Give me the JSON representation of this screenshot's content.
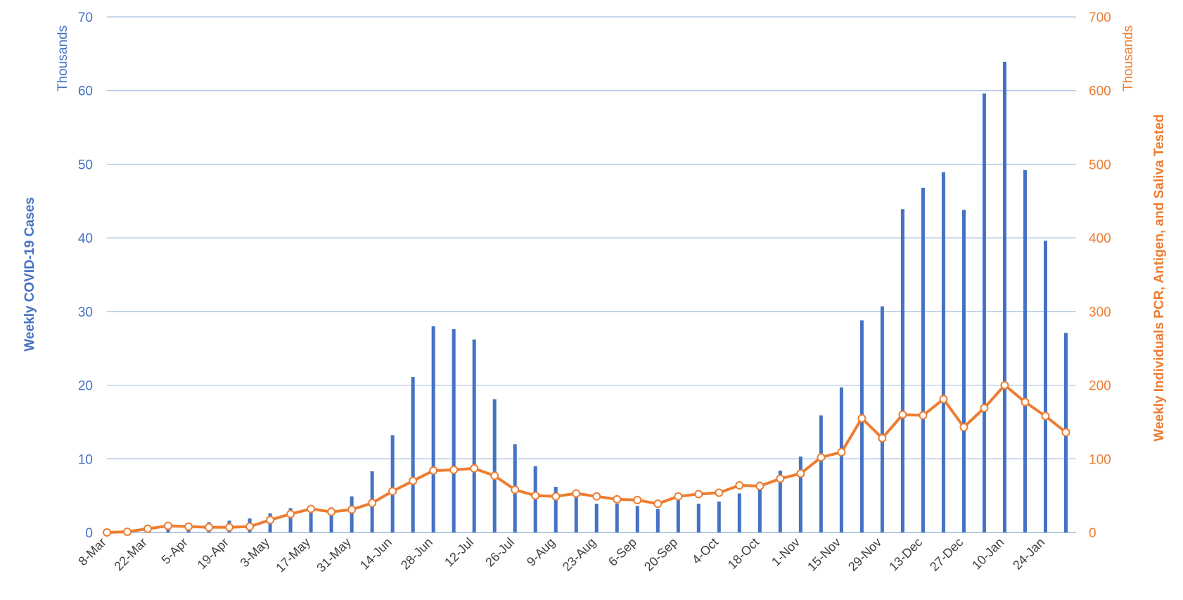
{
  "chart_data": {
    "type": "bar",
    "title": "",
    "colors": {
      "cases": "#4472C4",
      "tested": "#ED7D31",
      "grid": "#A9BFE6"
    },
    "categories": [
      "8-Mar",
      "15-Mar",
      "22-Mar",
      "29-Mar",
      "5-Apr",
      "12-Apr",
      "19-Apr",
      "26-Apr",
      "3-May",
      "10-May",
      "17-May",
      "24-May",
      "31-May",
      "7-Jun",
      "14-Jun",
      "21-Jun",
      "28-Jun",
      "5-Jul",
      "12-Jul",
      "19-Jul",
      "26-Jul",
      "2-Aug",
      "9-Aug",
      "16-Aug",
      "23-Aug",
      "30-Aug",
      "6-Sep",
      "13-Sep",
      "20-Sep",
      "27-Sep",
      "4-Oct",
      "11-Oct",
      "18-Oct",
      "25-Oct",
      "1-Nov",
      "8-Nov",
      "15-Nov",
      "22-Nov",
      "29-Nov",
      "6-Dec",
      "13-Dec",
      "20-Dec",
      "27-Dec",
      "3-Jan",
      "10-Jan",
      "17-Jan",
      "24-Jan",
      "31-Jan"
    ],
    "x_tick_labels": [
      "8-Mar",
      "22-Mar",
      "5-Apr",
      "19-Apr",
      "3-May",
      "17-May",
      "31-May",
      "14-Jun",
      "28-Jun",
      "12-Jul",
      "26-Jul",
      "9-Aug",
      "23-Aug",
      "6-Sep",
      "20-Sep",
      "4-Oct",
      "18-Oct",
      "1-Nov",
      "15-Nov",
      "29-Nov",
      "13-Dec",
      "27-Dec",
      "10-Jan",
      "24-Jan"
    ],
    "series": [
      {
        "name": "Weekly COVID-19 Cases",
        "type": "bar",
        "axis": "left",
        "values": [
          0.1,
          0.3,
          0.8,
          1.1,
          1.2,
          1.4,
          1.6,
          1.9,
          2.6,
          3.3,
          3.4,
          3.4,
          4.9,
          8.3,
          13.2,
          21.1,
          28.0,
          27.6,
          26.2,
          18.1,
          12.0,
          9.0,
          6.2,
          5.6,
          3.9,
          3.9,
          3.6,
          3.2,
          4.4,
          3.9,
          4.2,
          5.3,
          6.9,
          8.4,
          10.3,
          15.9,
          19.7,
          28.8,
          30.7,
          43.9,
          46.8,
          48.9,
          43.8,
          59.6,
          63.9,
          49.2,
          39.6,
          27.1
        ]
      },
      {
        "name": "Weekly Individuals PCR, Antigen, and Saliva Tested",
        "type": "line",
        "axis": "right",
        "values": [
          0,
          1,
          5,
          9,
          8,
          7,
          7,
          8,
          17,
          25,
          32,
          28,
          31,
          40,
          56,
          70,
          84,
          85,
          87,
          77,
          58,
          50,
          49,
          53,
          49,
          45,
          44,
          39,
          49,
          52,
          54,
          64,
          63,
          73,
          80,
          102,
          109,
          155,
          128,
          160,
          159,
          181,
          143,
          169,
          200,
          177,
          158,
          136
        ]
      }
    ],
    "left_axis": {
      "label": "Weekly COVID-19 Cases",
      "units": "Thousands",
      "ylim": [
        0,
        70
      ],
      "ticks": [
        "0",
        "10",
        "20",
        "30",
        "40",
        "50",
        "60",
        "70"
      ]
    },
    "right_axis": {
      "label": "Weekly Individuals PCR, Antigen, and Saliva Tested",
      "units": "Thousands",
      "ylim": [
        0,
        700
      ],
      "ticks": [
        "0",
        "100",
        "200",
        "300",
        "400",
        "500",
        "600",
        "700"
      ]
    },
    "grid": true,
    "legend": "none"
  }
}
